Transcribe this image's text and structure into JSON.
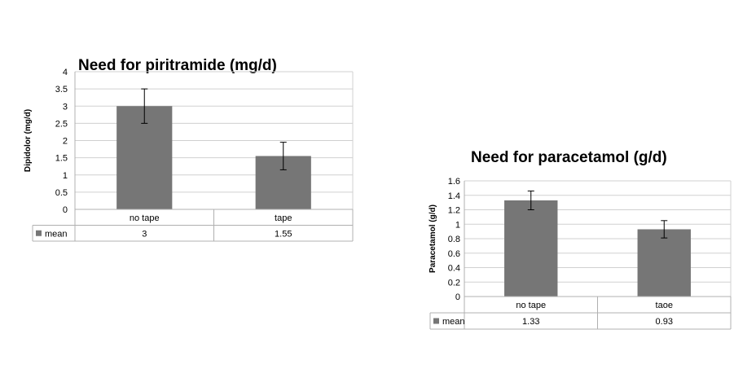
{
  "chart_data": [
    {
      "type": "bar",
      "title": "Need for piritramide (mg/d)",
      "ylabel": "Dipidolor (mg/d)",
      "categories": [
        "no tape",
        "tape"
      ],
      "series": [
        {
          "name": "mean",
          "values": [
            3,
            1.55
          ],
          "error": [
            0.5,
            0.4
          ],
          "color": "#767676"
        }
      ],
      "data_table": [
        "3",
        "1.55"
      ],
      "ylim": [
        0,
        4
      ],
      "yticks": [
        "0",
        "0.5",
        "1",
        "1.5",
        "2",
        "2.5",
        "3",
        "3.5",
        "4"
      ],
      "grid": true,
      "legend": "data-table"
    },
    {
      "type": "bar",
      "title": "Need for paracetamol (g/d)",
      "ylabel": "Paracetamol (g/d)",
      "categories": [
        "no tape",
        "taoe"
      ],
      "series": [
        {
          "name": "mean",
          "values": [
            1.33,
            0.93
          ],
          "error": [
            0.13,
            0.12
          ],
          "color": "#767676"
        }
      ],
      "data_table": [
        "1.33",
        "0.93"
      ],
      "ylim": [
        0,
        1.6
      ],
      "yticks": [
        "0",
        "0.2",
        "0.4",
        "0.6",
        "0.8",
        "1",
        "1.2",
        "1.4",
        "1.6"
      ],
      "grid": true,
      "legend": "data-table"
    }
  ]
}
